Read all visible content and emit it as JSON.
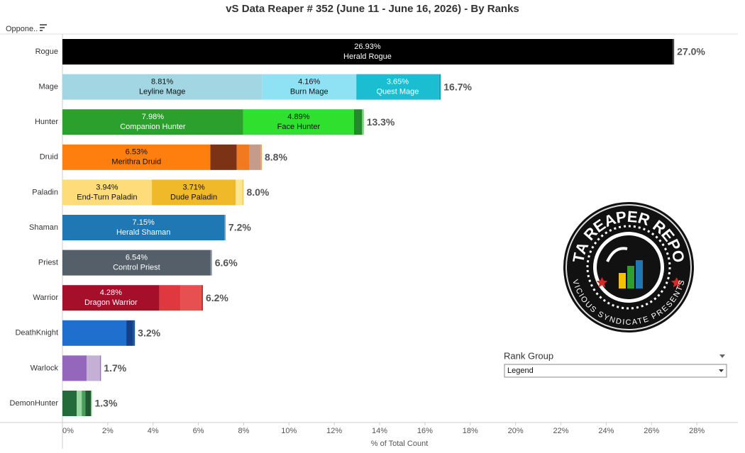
{
  "chart_data": {
    "type": "stacked-bar-horizontal",
    "title": "vS Data Reaper # 352 (June 11 - June 16, 2026) - By Ranks",
    "row_header": "Oppone..",
    "x_label": "% of Total Count",
    "xlim": [
      0,
      29.5
    ],
    "xticks": [
      {
        "value": 0,
        "label": "0%"
      },
      {
        "value": 2,
        "label": "2%"
      },
      {
        "value": 4,
        "label": "4%"
      },
      {
        "value": 6,
        "label": "6%"
      },
      {
        "value": 8,
        "label": "8%"
      },
      {
        "value": 10,
        "label": "10%"
      },
      {
        "value": 12,
        "label": "12%"
      },
      {
        "value": 14,
        "label": "14%"
      },
      {
        "value": 16,
        "label": "16%"
      },
      {
        "value": 18,
        "label": "18%"
      },
      {
        "value": 20,
        "label": "20%"
      },
      {
        "value": 22,
        "label": "22%"
      },
      {
        "value": 24,
        "label": "24%"
      },
      {
        "value": 26,
        "label": "26%"
      },
      {
        "value": 28,
        "label": "28%"
      }
    ],
    "rows": [
      {
        "category": "Rogue",
        "total": 27.0,
        "total_label": "27.0%",
        "segments": [
          {
            "value": 26.93,
            "value_label": "26.93%",
            "name": "Herald Rogue",
            "color": "#000000"
          },
          {
            "value": 0.07,
            "color": "#444444"
          }
        ]
      },
      {
        "category": "Mage",
        "total": 16.7,
        "total_label": "16.7%",
        "segments": [
          {
            "value": 8.81,
            "value_label": "8.81%",
            "name": "Leyline Mage",
            "color": "#a2d6e2"
          },
          {
            "value": 4.16,
            "value_label": "4.16%",
            "name": "Burn Mage",
            "color": "#8fe2f4"
          },
          {
            "value": 3.65,
            "value_label": "3.65%",
            "name": "Quest Mage",
            "color": "#1bbdd1"
          },
          {
            "value": 0.08,
            "color": "#17a2b8"
          }
        ]
      },
      {
        "category": "Hunter",
        "total": 13.3,
        "total_label": "13.3%",
        "segments": [
          {
            "value": 7.98,
            "value_label": "7.98%",
            "name": "Companion Hunter",
            "color": "#2ca02c"
          },
          {
            "value": 4.89,
            "value_label": "4.89%",
            "name": "Face Hunter",
            "color": "#2fe02f"
          },
          {
            "value": 0.35,
            "color": "#23892b"
          },
          {
            "value": 0.08,
            "color": "#6fcf6f"
          }
        ]
      },
      {
        "category": "Druid",
        "total": 8.8,
        "total_label": "8.8%",
        "segments": [
          {
            "value": 6.53,
            "value_label": "6.53%",
            "name": "Merithra Druid",
            "color": "#ff7f0e"
          },
          {
            "value": 1.16,
            "color": "#7b3215"
          },
          {
            "value": 0.56,
            "color": "#f17a20"
          },
          {
            "value": 0.5,
            "color": "#c59c8c"
          },
          {
            "value": 0.05,
            "color": "#ff9f4a"
          }
        ]
      },
      {
        "category": "Paladin",
        "total": 8.0,
        "total_label": "8.0%",
        "segments": [
          {
            "value": 3.94,
            "value_label": "3.94%",
            "name": "End-Turn Paladin",
            "color": "#fddc79"
          },
          {
            "value": 3.71,
            "value_label": "3.71%",
            "name": "Dude Paladin",
            "color": "#f0b92a"
          },
          {
            "value": 0.28,
            "color": "#fde68c"
          },
          {
            "value": 0.07,
            "color": "#f5d060"
          }
        ]
      },
      {
        "category": "Shaman",
        "total": 7.2,
        "total_label": "7.2%",
        "segments": [
          {
            "value": 7.15,
            "value_label": "7.15%",
            "name": "Herald Shaman",
            "color": "#1f77b4"
          },
          {
            "value": 0.05,
            "color": "#5599cc"
          }
        ]
      },
      {
        "category": "Priest",
        "total": 6.6,
        "total_label": "6.6%",
        "segments": [
          {
            "value": 6.54,
            "value_label": "6.54%",
            "name": "Control Priest",
            "color": "#555f69"
          },
          {
            "value": 0.06,
            "color": "#8a959e"
          }
        ]
      },
      {
        "category": "Warrior",
        "total": 6.2,
        "total_label": "6.2%",
        "segments": [
          {
            "value": 4.28,
            "value_label": "4.28%",
            "name": "Dragon Warrior",
            "color": "#a50f2a"
          },
          {
            "value": 0.94,
            "color": "#e0383f"
          },
          {
            "value": 0.91,
            "color": "#e65050"
          },
          {
            "value": 0.07,
            "color": "#c03030"
          }
        ]
      },
      {
        "category": "DeathKnight",
        "total": 3.2,
        "total_label": "3.2%",
        "segments": [
          {
            "value": 2.82,
            "color": "#1f6fcf"
          },
          {
            "value": 0.28,
            "color": "#12418a"
          },
          {
            "value": 0.1,
            "color": "#2255aa"
          }
        ]
      },
      {
        "category": "Warlock",
        "total": 1.7,
        "total_label": "1.7%",
        "segments": [
          {
            "value": 1.07,
            "color": "#9467bd"
          },
          {
            "value": 0.6,
            "color": "#c5b0d5"
          },
          {
            "value": 0.03,
            "color": "#7a4fa0"
          }
        ]
      },
      {
        "category": "DemonHunter",
        "total": 1.3,
        "total_label": "1.3%",
        "segments": [
          {
            "value": 0.63,
            "color": "#236b3a"
          },
          {
            "value": 0.22,
            "color": "#98d8a0"
          },
          {
            "value": 0.16,
            "color": "#4aa05a"
          },
          {
            "value": 0.25,
            "color": "#1d5a30"
          },
          {
            "value": 0.04,
            "color": "#8bc58b"
          }
        ]
      }
    ],
    "filter": {
      "title": "Rank Group",
      "selected": "Legend"
    },
    "logo": {
      "title": "DATA REAPER REPORT",
      "subtitle": "VICIOUS SYNDICATE PRESENTS"
    }
  }
}
